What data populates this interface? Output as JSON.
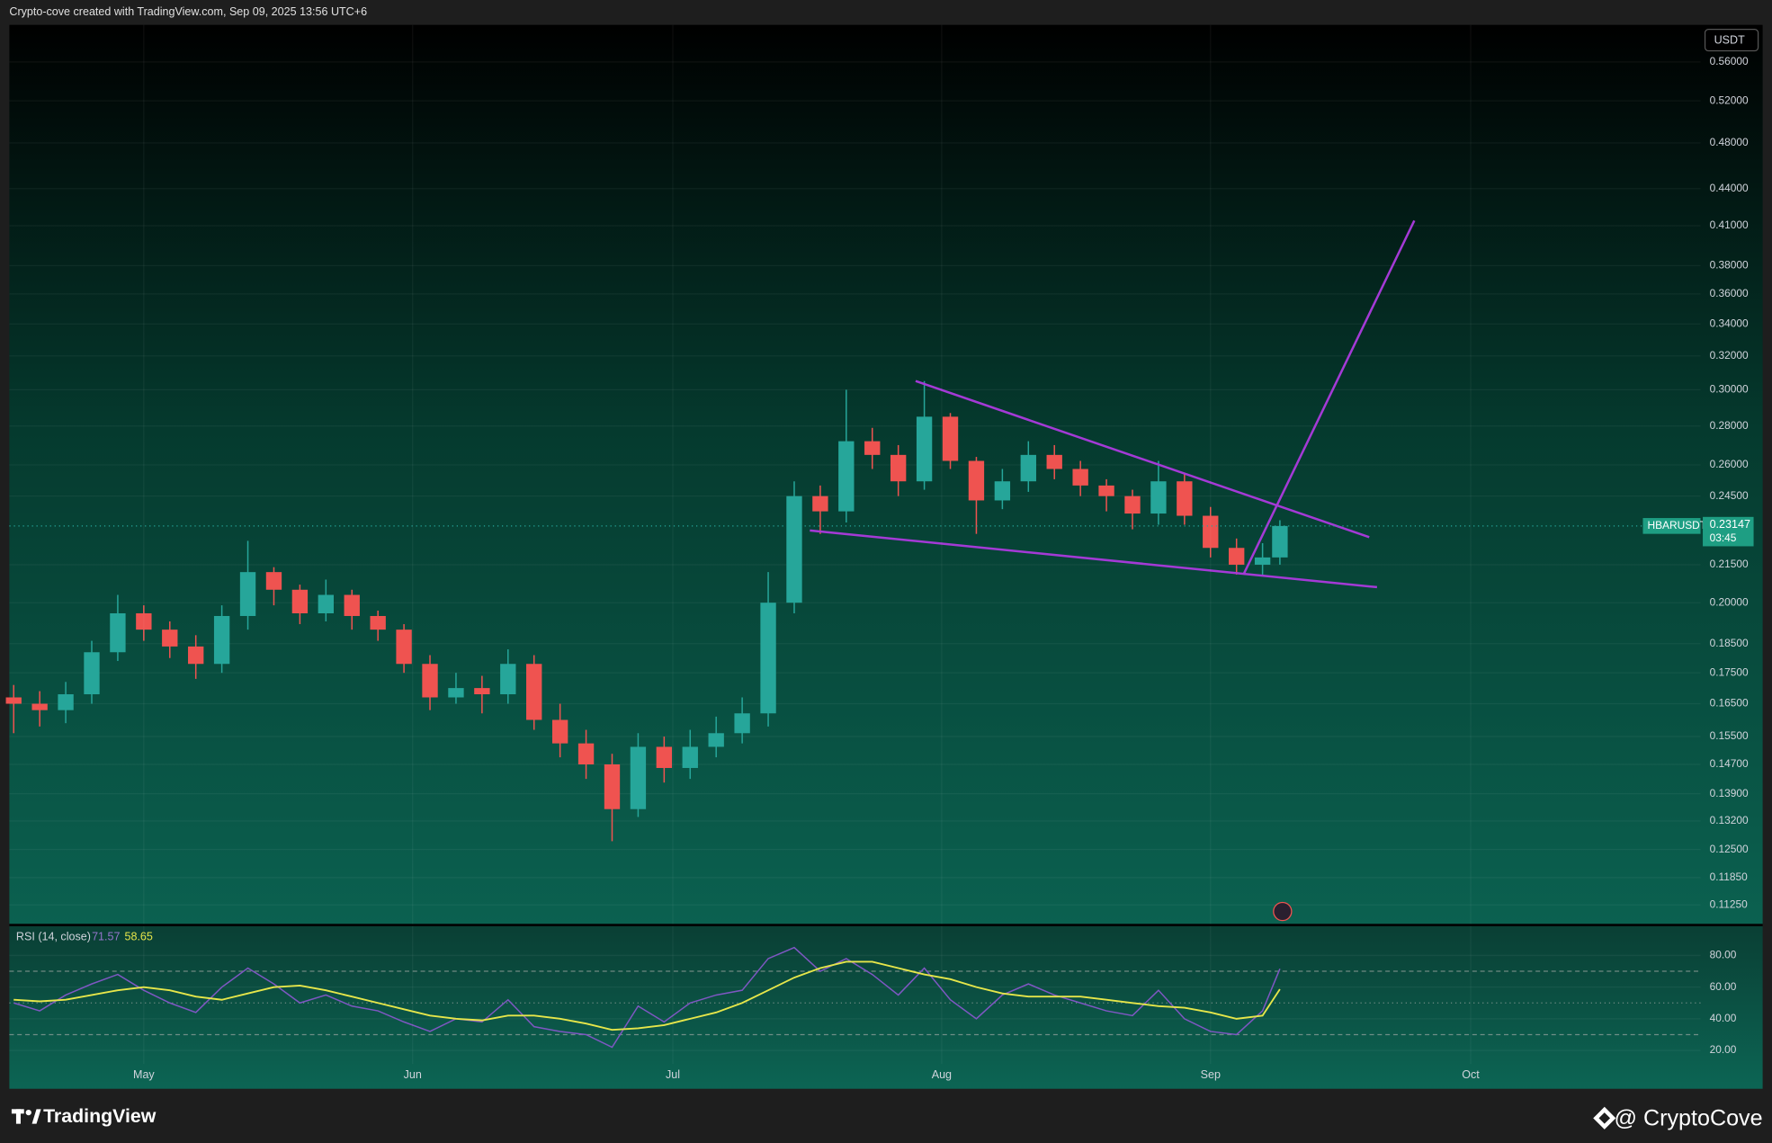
{
  "header_note": "Crypto-cove created with TradingView.com, Sep 09, 2025 13:56 UTC+6",
  "footer": {
    "brand": "TradingView",
    "credit": "@ CryptoCove"
  },
  "chart_data": [
    {
      "type": "candlestick",
      "currency": "USDT",
      "log_scale": true,
      "grid": true,
      "up_color": "#26a69a",
      "down_color": "#ef5350",
      "drawing_color": "#a43ad6",
      "x": [
        106,
        109,
        112,
        115,
        118,
        121,
        124,
        127,
        130,
        133,
        136,
        139,
        142,
        145,
        148,
        151,
        154,
        157,
        160,
        163,
        166,
        169,
        172,
        175,
        178,
        181,
        184,
        187,
        190,
        193,
        196,
        199,
        202,
        205,
        208,
        211,
        214,
        217,
        220,
        223,
        226,
        229,
        232,
        235,
        238,
        241,
        244,
        247,
        250,
        252
      ],
      "open": [
        0.167,
        0.165,
        0.163,
        0.168,
        0.182,
        0.196,
        0.19,
        0.184,
        0.178,
        0.195,
        0.212,
        0.205,
        0.196,
        0.203,
        0.195,
        0.19,
        0.178,
        0.167,
        0.17,
        0.168,
        0.178,
        0.16,
        0.153,
        0.147,
        0.135,
        0.152,
        0.146,
        0.152,
        0.156,
        0.162,
        0.2,
        0.245,
        0.238,
        0.272,
        0.265,
        0.252,
        0.285,
        0.262,
        0.243,
        0.252,
        0.265,
        0.258,
        0.25,
        0.245,
        0.237,
        0.252,
        0.236,
        0.222,
        0.215,
        0.218
      ],
      "high": [
        0.171,
        0.169,
        0.172,
        0.186,
        0.203,
        0.199,
        0.193,
        0.188,
        0.199,
        0.225,
        0.214,
        0.207,
        0.209,
        0.205,
        0.197,
        0.192,
        0.181,
        0.175,
        0.174,
        0.183,
        0.181,
        0.165,
        0.157,
        0.15,
        0.156,
        0.155,
        0.157,
        0.161,
        0.167,
        0.212,
        0.252,
        0.25,
        0.3,
        0.279,
        0.27,
        0.305,
        0.287,
        0.264,
        0.258,
        0.272,
        0.27,
        0.262,
        0.253,
        0.248,
        0.262,
        0.256,
        0.24,
        0.226,
        0.224,
        0.234
      ],
      "low": [
        0.156,
        0.158,
        0.159,
        0.165,
        0.179,
        0.186,
        0.18,
        0.173,
        0.175,
        0.19,
        0.199,
        0.192,
        0.193,
        0.19,
        0.186,
        0.175,
        0.163,
        0.165,
        0.162,
        0.165,
        0.157,
        0.149,
        0.143,
        0.127,
        0.133,
        0.142,
        0.143,
        0.149,
        0.153,
        0.158,
        0.196,
        0.228,
        0.233,
        0.258,
        0.245,
        0.248,
        0.258,
        0.228,
        0.239,
        0.247,
        0.253,
        0.245,
        0.238,
        0.23,
        0.232,
        0.232,
        0.218,
        0.211,
        0.211,
        0.215
      ],
      "close": [
        0.165,
        0.163,
        0.168,
        0.182,
        0.196,
        0.19,
        0.184,
        0.178,
        0.195,
        0.212,
        0.205,
        0.196,
        0.203,
        0.195,
        0.19,
        0.178,
        0.167,
        0.17,
        0.168,
        0.178,
        0.16,
        0.153,
        0.147,
        0.135,
        0.152,
        0.146,
        0.152,
        0.156,
        0.162,
        0.2,
        0.245,
        0.238,
        0.272,
        0.265,
        0.252,
        0.285,
        0.262,
        0.243,
        0.252,
        0.265,
        0.258,
        0.25,
        0.245,
        0.237,
        0.252,
        0.236,
        0.222,
        0.215,
        0.218,
        0.23147
      ],
      "price_marker": {
        "value": 0.23147,
        "label": "0.23147",
        "countdown": "03:45",
        "symbol": "HBARUSDT"
      },
      "drawings": [
        {
          "x": [
            210,
            262.3
          ],
          "y": [
            0.305,
            0.2266
          ]
        },
        {
          "x": [
            197.8,
            263.2
          ],
          "y": [
            0.2295,
            0.206
          ]
        },
        {
          "x": [
            247.8,
            267.5
          ],
          "y": [
            0.211,
            0.414
          ]
        }
      ],
      "xlim": [
        105.5,
        300.5
      ],
      "ylim": [
        0.1085,
        0.601
      ],
      "yticks": [
        {
          "value": 0.56,
          "label": "0.56000"
        },
        {
          "value": 0.52,
          "label": "0.52000"
        },
        {
          "value": 0.48,
          "label": "0.48000"
        },
        {
          "value": 0.44,
          "label": "0.44000"
        },
        {
          "value": 0.41,
          "label": "0.41000"
        },
        {
          "value": 0.38,
          "label": "0.38000"
        },
        {
          "value": 0.36,
          "label": "0.36000"
        },
        {
          "value": 0.34,
          "label": "0.34000"
        },
        {
          "value": 0.32,
          "label": "0.32000"
        },
        {
          "value": 0.3,
          "label": "0.30000"
        },
        {
          "value": 0.28,
          "label": "0.28000"
        },
        {
          "value": 0.26,
          "label": "0.26000"
        },
        {
          "value": 0.245,
          "label": "0.24500"
        },
        {
          "value": 0.215,
          "label": "0.21500"
        },
        {
          "value": 0.2,
          "label": "0.20000"
        },
        {
          "value": 0.185,
          "label": "0.18500"
        },
        {
          "value": 0.175,
          "label": "0.17500"
        },
        {
          "value": 0.165,
          "label": "0.16500"
        },
        {
          "value": 0.155,
          "label": "0.15500"
        },
        {
          "value": 0.147,
          "label": "0.14700"
        },
        {
          "value": 0.139,
          "label": "0.13900"
        },
        {
          "value": 0.132,
          "label": "0.13200"
        },
        {
          "value": 0.125,
          "label": "0.12500"
        },
        {
          "value": 0.1185,
          "label": "0.11850"
        },
        {
          "value": 0.1125,
          "label": "0.11250"
        }
      ]
    },
    {
      "type": "line",
      "title": "RSI (14, close)",
      "grid": true,
      "x": [
        106,
        109,
        112,
        115,
        118,
        121,
        124,
        127,
        130,
        133,
        136,
        139,
        142,
        145,
        148,
        151,
        154,
        157,
        160,
        163,
        166,
        169,
        172,
        175,
        178,
        181,
        184,
        187,
        190,
        193,
        196,
        199,
        202,
        205,
        208,
        211,
        214,
        217,
        220,
        223,
        226,
        229,
        232,
        235,
        238,
        241,
        244,
        247,
        250,
        252
      ],
      "series": [
        {
          "color": "#7e57c2",
          "values": [
            50,
            45,
            55,
            62,
            68,
            58,
            50,
            44,
            60,
            72,
            62,
            50,
            55,
            48,
            45,
            38,
            32,
            40,
            38,
            52,
            35,
            32,
            30,
            22,
            48,
            38,
            50,
            55,
            58,
            78,
            85,
            70,
            78,
            68,
            55,
            72,
            52,
            40,
            55,
            62,
            55,
            50,
            45,
            42,
            58,
            40,
            32,
            30,
            45,
            71.57
          ]
        },
        {
          "color": "#e6e64a",
          "values": [
            52,
            51,
            52,
            55,
            58,
            60,
            58,
            54,
            52,
            56,
            60,
            61,
            58,
            54,
            50,
            46,
            42,
            40,
            39,
            42,
            42,
            40,
            37,
            33,
            34,
            36,
            40,
            44,
            50,
            58,
            66,
            72,
            76,
            76,
            72,
            68,
            65,
            60,
            56,
            54,
            54,
            54,
            52,
            50,
            48,
            47,
            44,
            40,
            42,
            58.65
          ]
        }
      ],
      "levels": [
        30,
        50,
        70
      ],
      "xlim": [
        105.5,
        300.5
      ],
      "ylim": [
        -3.5,
        98.5
      ],
      "yticks": [
        {
          "value": 80,
          "label": "80.00"
        },
        {
          "value": 60,
          "label": "60.00"
        },
        {
          "value": 40,
          "label": "40.00"
        },
        {
          "value": 20,
          "label": "20.00"
        }
      ],
      "xticks": [
        {
          "value": 121,
          "label": "May"
        },
        {
          "value": 152,
          "label": "Jun"
        },
        {
          "value": 182,
          "label": "Jul"
        },
        {
          "value": 213,
          "label": "Aug"
        },
        {
          "value": 244,
          "label": "Sep"
        },
        {
          "value": 274,
          "label": "Oct"
        }
      ]
    }
  ]
}
